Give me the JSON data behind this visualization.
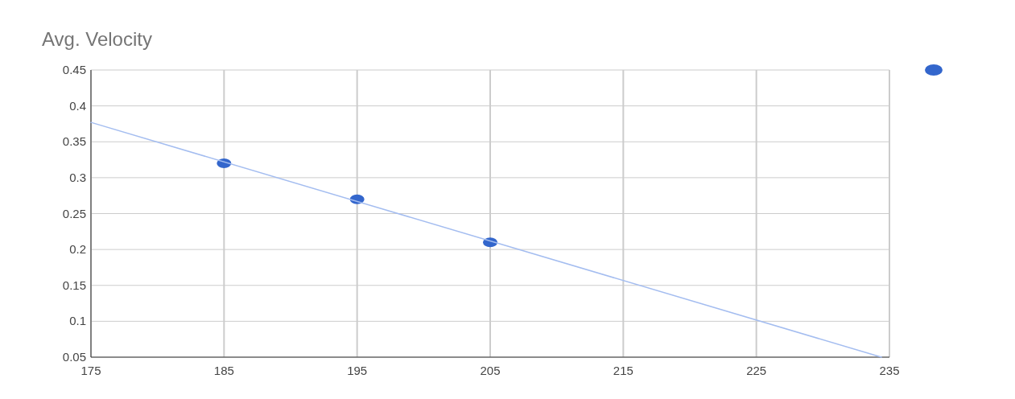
{
  "chart_data": {
    "type": "scatter",
    "title": "Avg. Velocity",
    "series": [
      {
        "color": "#3366cc",
        "x": [
          185,
          195,
          205
        ],
        "values": [
          0.32,
          0.27,
          0.21
        ]
      },
      {
        "type": "line",
        "color": "#a4bdf0",
        "x": [
          175,
          234.4
        ],
        "values": [
          0.377,
          0.05
        ],
        "marker": "none"
      }
    ],
    "xlim": [
      175,
      235
    ],
    "xticks": [
      175,
      185,
      195,
      205,
      215,
      225,
      235
    ],
    "ylim": [
      0.05,
      0.45
    ],
    "yticks": [
      0.05,
      0.1,
      0.15,
      0.2,
      0.25,
      0.3,
      0.35,
      0.4,
      0.45
    ],
    "grid": true,
    "marker": "circle"
  }
}
